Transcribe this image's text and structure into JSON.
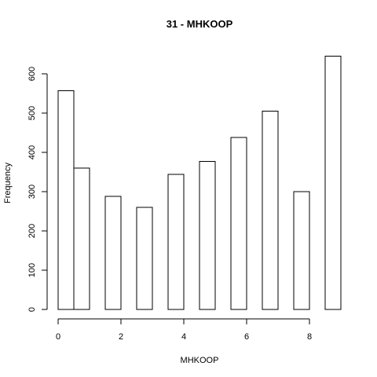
{
  "chart_data": {
    "type": "bar",
    "title": "31 - MHKOOP",
    "xlabel": "MHKOOP",
    "ylabel": "Frequency",
    "bins": [
      {
        "x0": 0,
        "x1": 0.5,
        "value": 557
      },
      {
        "x0": 0.5,
        "x1": 1.0,
        "value": 360
      },
      {
        "x0": 1.0,
        "x1": 1.5,
        "value": 0
      },
      {
        "x0": 1.5,
        "x1": 2.0,
        "value": 288
      },
      {
        "x0": 2.0,
        "x1": 2.5,
        "value": 0
      },
      {
        "x0": 2.5,
        "x1": 3.0,
        "value": 260
      },
      {
        "x0": 3.0,
        "x1": 3.5,
        "value": 0
      },
      {
        "x0": 3.5,
        "x1": 4.0,
        "value": 344
      },
      {
        "x0": 4.0,
        "x1": 4.5,
        "value": 0
      },
      {
        "x0": 4.5,
        "x1": 5.0,
        "value": 377
      },
      {
        "x0": 5.0,
        "x1": 5.5,
        "value": 0
      },
      {
        "x0": 5.5,
        "x1": 6.0,
        "value": 438
      },
      {
        "x0": 6.0,
        "x1": 6.5,
        "value": 0
      },
      {
        "x0": 6.5,
        "x1": 7.0,
        "value": 505
      },
      {
        "x0": 7.0,
        "x1": 7.5,
        "value": 0
      },
      {
        "x0": 7.5,
        "x1": 8.0,
        "value": 300
      },
      {
        "x0": 8.0,
        "x1": 8.5,
        "value": 0
      },
      {
        "x0": 8.5,
        "x1": 9.0,
        "value": 645
      }
    ],
    "xticks": [
      0,
      2,
      4,
      6,
      8
    ],
    "yticks": [
      0,
      100,
      200,
      300,
      400,
      500,
      600
    ],
    "xlim": [
      0,
      9
    ],
    "ylim": [
      0,
      645
    ],
    "grid": false,
    "legend": "none",
    "bar_fill": "#ffffff",
    "bar_stroke": "#000000"
  }
}
